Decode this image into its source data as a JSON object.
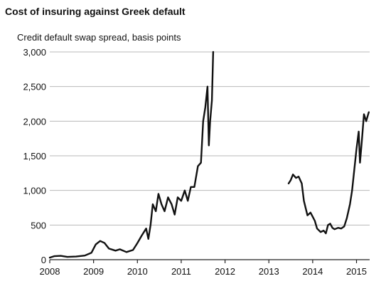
{
  "chart_data": {
    "type": "line",
    "title": "Cost of insuring against Greek default",
    "subtitle": "Credit default swap spread, basis points",
    "xlabel": "",
    "ylabel": "",
    "xlim": [
      2008,
      2015.3
    ],
    "ylim": [
      0,
      3000
    ],
    "grid": true,
    "legend": "none",
    "x_ticks": [
      "2008",
      "2009",
      "2010",
      "2011",
      "2012",
      "2013",
      "2014",
      "2015"
    ],
    "y_ticks": [
      "0",
      "500",
      "1,000",
      "1,500",
      "2,000",
      "2,500",
      "3,000"
    ],
    "series": [
      {
        "color": "#111111",
        "segments": [
          [
            [
              2008.0,
              30
            ],
            [
              2008.1,
              50
            ],
            [
              2008.25,
              55
            ],
            [
              2008.4,
              40
            ],
            [
              2008.6,
              45
            ],
            [
              2008.8,
              60
            ],
            [
              2008.95,
              100
            ],
            [
              2009.05,
              220
            ],
            [
              2009.15,
              270
            ],
            [
              2009.25,
              240
            ],
            [
              2009.35,
              160
            ],
            [
              2009.5,
              130
            ],
            [
              2009.6,
              150
            ],
            [
              2009.75,
              110
            ],
            [
              2009.9,
              140
            ],
            [
              2010.0,
              240
            ],
            [
              2010.1,
              350
            ],
            [
              2010.2,
              450
            ],
            [
              2010.25,
              300
            ],
            [
              2010.3,
              500
            ],
            [
              2010.35,
              800
            ],
            [
              2010.42,
              700
            ],
            [
              2010.48,
              950
            ],
            [
              2010.55,
              800
            ],
            [
              2010.62,
              700
            ],
            [
              2010.7,
              900
            ],
            [
              2010.78,
              800
            ],
            [
              2010.85,
              650
            ],
            [
              2010.92,
              900
            ],
            [
              2011.0,
              850
            ],
            [
              2011.08,
              1000
            ],
            [
              2011.15,
              850
            ],
            [
              2011.22,
              1050
            ],
            [
              2011.3,
              1050
            ],
            [
              2011.38,
              1350
            ],
            [
              2011.45,
              1400
            ],
            [
              2011.5,
              2000
            ],
            [
              2011.55,
              2200
            ],
            [
              2011.6,
              2500
            ],
            [
              2011.63,
              1650
            ],
            [
              2011.66,
              2000
            ],
            [
              2011.7,
              2300
            ],
            [
              2011.73,
              3000
            ]
          ],
          [
            [
              2013.45,
              1100
            ],
            [
              2013.5,
              1150
            ],
            [
              2013.55,
              1230
            ],
            [
              2013.62,
              1180
            ],
            [
              2013.68,
              1200
            ],
            [
              2013.75,
              1100
            ],
            [
              2013.8,
              850
            ],
            [
              2013.88,
              640
            ],
            [
              2013.95,
              680
            ],
            [
              2014.0,
              620
            ],
            [
              2014.05,
              560
            ],
            [
              2014.1,
              450
            ],
            [
              2014.18,
              400
            ],
            [
              2014.25,
              420
            ],
            [
              2014.3,
              380
            ],
            [
              2014.35,
              500
            ],
            [
              2014.4,
              520
            ],
            [
              2014.45,
              460
            ],
            [
              2014.5,
              440
            ],
            [
              2014.58,
              460
            ],
            [
              2014.65,
              450
            ],
            [
              2014.72,
              480
            ],
            [
              2014.78,
              600
            ],
            [
              2014.85,
              800
            ],
            [
              2014.9,
              1000
            ],
            [
              2014.95,
              1300
            ],
            [
              2015.0,
              1600
            ],
            [
              2015.05,
              1850
            ],
            [
              2015.08,
              1400
            ],
            [
              2015.12,
              1700
            ],
            [
              2015.17,
              2100
            ],
            [
              2015.22,
              2000
            ],
            [
              2015.28,
              2130
            ]
          ]
        ]
      }
    ]
  }
}
